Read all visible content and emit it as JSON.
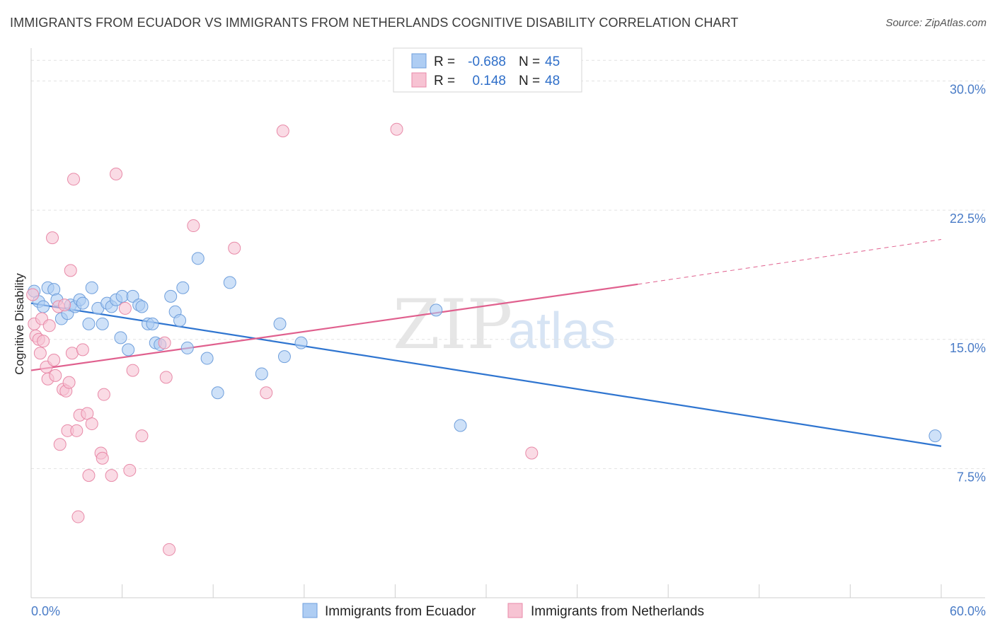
{
  "header": {
    "title": "IMMIGRANTS FROM ECUADOR VS IMMIGRANTS FROM NETHERLANDS COGNITIVE DISABILITY CORRELATION CHART",
    "source": "Source: ZipAtlas.com"
  },
  "watermark": {
    "zip": "ZIP",
    "atlas": "atlas"
  },
  "legend": {
    "rows": [
      {
        "r_label": "R =",
        "r_value": "-0.688",
        "n_label": "N =",
        "n_value": "45",
        "color": "#aecdf3",
        "stroke": "#6f9fdc"
      },
      {
        "r_label": "R =",
        "r_value": "0.148",
        "n_label": "N =",
        "n_value": "48",
        "color": "#f7c3d3",
        "stroke": "#e88aa8"
      }
    ]
  },
  "chart_data": {
    "type": "scatter",
    "title": "IMMIGRANTS FROM ECUADOR VS IMMIGRANTS FROM NETHERLANDS COGNITIVE DISABILITY CORRELATION CHART",
    "xlabel": "",
    "ylabel": "Cognitive Disability",
    "xlim": [
      0,
      60
    ],
    "ylim": [
      0,
      31.5
    ],
    "x_tick_labels": [
      "0.0%",
      "60.0%"
    ],
    "y_ticks": [
      7.5,
      15.0,
      22.5,
      30.0
    ],
    "y_tick_labels": [
      "7.5%",
      "15.0%",
      "22.5%",
      "30.0%"
    ],
    "grid": true,
    "legend_position": "top-center",
    "series": [
      {
        "name": "Immigrants from Ecuador",
        "color": "#aecdf3",
        "stroke": "#6f9fdc",
        "line_color": "#2f75d0",
        "trend": {
          "x": [
            0,
            60
          ],
          "y": [
            17.1,
            8.8
          ]
        },
        "points": [
          [
            0.2,
            17.8
          ],
          [
            0.5,
            17.2
          ],
          [
            0.8,
            16.9
          ],
          [
            1.1,
            18.0
          ],
          [
            1.5,
            17.9
          ],
          [
            1.7,
            17.3
          ],
          [
            2.0,
            16.2
          ],
          [
            2.4,
            16.5
          ],
          [
            2.6,
            17.0
          ],
          [
            2.9,
            16.9
          ],
          [
            3.2,
            17.3
          ],
          [
            3.4,
            17.1
          ],
          [
            3.8,
            15.9
          ],
          [
            4.0,
            18.0
          ],
          [
            4.4,
            16.8
          ],
          [
            4.7,
            15.9
          ],
          [
            5.0,
            17.1
          ],
          [
            5.3,
            16.9
          ],
          [
            5.6,
            17.3
          ],
          [
            5.9,
            15.1
          ],
          [
            6.0,
            17.5
          ],
          [
            6.4,
            14.4
          ],
          [
            6.7,
            17.5
          ],
          [
            7.1,
            17.0
          ],
          [
            7.3,
            16.9
          ],
          [
            7.7,
            15.9
          ],
          [
            8.0,
            15.9
          ],
          [
            8.2,
            14.8
          ],
          [
            8.5,
            14.7
          ],
          [
            9.2,
            17.5
          ],
          [
            9.5,
            16.6
          ],
          [
            9.8,
            16.1
          ],
          [
            10.0,
            18.0
          ],
          [
            10.3,
            14.5
          ],
          [
            11.0,
            19.7
          ],
          [
            11.6,
            13.9
          ],
          [
            12.3,
            11.9
          ],
          [
            13.1,
            18.3
          ],
          [
            15.2,
            13.0
          ],
          [
            16.4,
            15.9
          ],
          [
            16.7,
            14.0
          ],
          [
            17.8,
            14.8
          ],
          [
            26.7,
            16.7
          ],
          [
            28.3,
            10.0
          ],
          [
            59.6,
            9.4
          ]
        ]
      },
      {
        "name": "Immigrants from Netherlands",
        "color": "#f7c3d3",
        "stroke": "#e88aa8",
        "line_color": "#e0608e",
        "trend": {
          "x": [
            0,
            40
          ],
          "y": [
            13.2,
            18.2
          ]
        },
        "trend_dashed": {
          "x": [
            40,
            60
          ],
          "y": [
            18.2,
            20.8
          ]
        },
        "points": [
          [
            0.1,
            17.6
          ],
          [
            0.2,
            15.9
          ],
          [
            0.3,
            15.2
          ],
          [
            0.5,
            15.0
          ],
          [
            0.6,
            14.2
          ],
          [
            0.7,
            16.2
          ],
          [
            0.8,
            14.9
          ],
          [
            1.0,
            13.4
          ],
          [
            1.1,
            12.7
          ],
          [
            1.2,
            15.8
          ],
          [
            1.4,
            20.9
          ],
          [
            1.5,
            13.8
          ],
          [
            1.6,
            12.9
          ],
          [
            1.8,
            16.9
          ],
          [
            1.9,
            8.9
          ],
          [
            2.1,
            12.1
          ],
          [
            2.2,
            17.0
          ],
          [
            2.3,
            12.0
          ],
          [
            2.4,
            9.7
          ],
          [
            2.5,
            12.5
          ],
          [
            2.6,
            19.0
          ],
          [
            2.7,
            14.2
          ],
          [
            2.8,
            24.3
          ],
          [
            3.0,
            9.7
          ],
          [
            3.1,
            4.7
          ],
          [
            3.2,
            10.6
          ],
          [
            3.4,
            14.4
          ],
          [
            3.7,
            10.7
          ],
          [
            3.8,
            7.1
          ],
          [
            4.0,
            10.1
          ],
          [
            4.6,
            8.4
          ],
          [
            4.7,
            8.1
          ],
          [
            4.8,
            11.8
          ],
          [
            5.3,
            7.1
          ],
          [
            5.6,
            24.6
          ],
          [
            6.2,
            16.8
          ],
          [
            6.5,
            7.4
          ],
          [
            6.7,
            13.2
          ],
          [
            7.3,
            9.4
          ],
          [
            8.8,
            14.8
          ],
          [
            8.9,
            12.8
          ],
          [
            9.1,
            2.8
          ],
          [
            10.7,
            21.6
          ],
          [
            13.4,
            20.3
          ],
          [
            15.5,
            11.9
          ],
          [
            16.6,
            27.1
          ],
          [
            24.1,
            27.2
          ],
          [
            33.0,
            8.4
          ]
        ]
      }
    ]
  }
}
